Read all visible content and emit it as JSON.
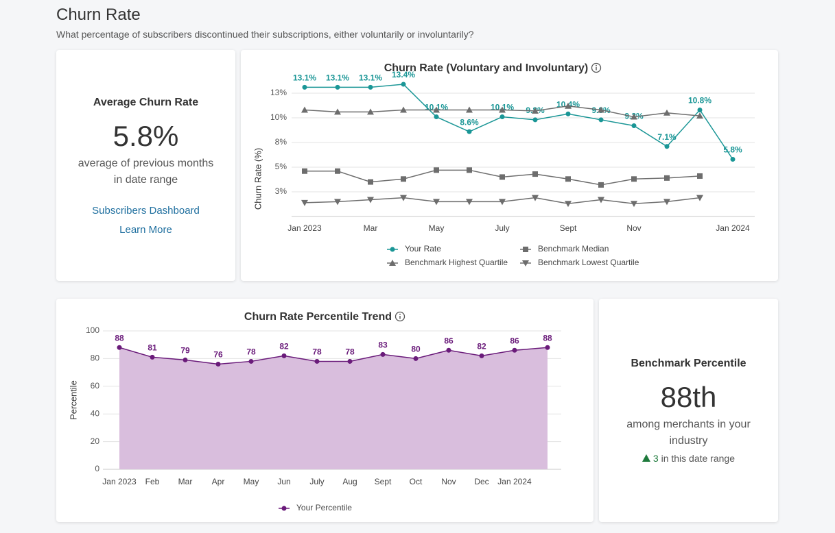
{
  "header": {
    "title": "Churn Rate",
    "subtitle": "What percentage of subscribers discontinued their subscriptions, either voluntarily or involuntarily?"
  },
  "average_card": {
    "title": "Average Churn Rate",
    "value": "5.8%",
    "caption": "average of previous months in date range",
    "links": [
      "Subscribers Dashboard",
      "Learn More"
    ]
  },
  "percentile_card": {
    "title": "Benchmark Percentile",
    "value": "88th",
    "caption": "among merchants in your industry",
    "change": 3,
    "change_text": "in this date range"
  },
  "chart_data": [
    {
      "type": "line",
      "title": "Churn Rate (Voluntary and Involuntary)",
      "y_label": "Churn Rate (%)",
      "categories": [
        "Jan 2023",
        null,
        "Mar",
        null,
        "May",
        null,
        "July",
        null,
        "Sept",
        null,
        "Nov",
        null,
        null,
        "Jan 2024"
      ],
      "ylim": [
        0,
        12.5
      ],
      "yticks": [
        {
          "value": 2.5,
          "label": "3%"
        },
        {
          "value": 5,
          "label": "5%"
        },
        {
          "value": 7.5,
          "label": "8%"
        },
        {
          "value": 10,
          "label": "10%"
        },
        {
          "value": 12.5,
          "label": "13%"
        }
      ],
      "grid": true,
      "series": [
        {
          "name": "Your Rate",
          "color": "#1a9696",
          "marker": "circle",
          "values": [
            13.1,
            13.1,
            13.1,
            13.4,
            10.1,
            8.6,
            10.1,
            9.8,
            10.4,
            9.8,
            9.2,
            7.1,
            10.8,
            5.8
          ],
          "value_labels": [
            "13.1%",
            "13.1%",
            "13.1%",
            "13.4%",
            "10.1%",
            "8.6%",
            "10.1%",
            "9.8%",
            "10.4%",
            "9.8%",
            "9.2%",
            "7.1%",
            "10.8%",
            "5.8%"
          ]
        },
        {
          "name": "Benchmark Median",
          "color": "#6d6d6d",
          "marker": "square",
          "values": [
            4.6,
            4.6,
            3.5,
            3.8,
            4.7,
            4.7,
            4.0,
            4.3,
            3.8,
            3.2,
            3.8,
            3.9,
            4.1,
            null
          ]
        },
        {
          "name": "Benchmark Highest Quartile",
          "color": "#6d6d6d",
          "marker": "triangle-up",
          "values": [
            10.8,
            10.6,
            10.6,
            10.8,
            10.8,
            10.8,
            10.8,
            10.7,
            11.2,
            10.8,
            10.1,
            10.5,
            10.2,
            null
          ]
        },
        {
          "name": "Benchmark Lowest Quartile",
          "color": "#6d6d6d",
          "marker": "triangle-down",
          "values": [
            1.4,
            1.5,
            1.7,
            1.9,
            1.5,
            1.5,
            1.5,
            1.9,
            1.3,
            1.7,
            1.3,
            1.5,
            1.9,
            null
          ]
        }
      ]
    },
    {
      "type": "area",
      "title": "Churn Rate Percentile Trend",
      "y_label": "Percentile",
      "categories": [
        "Jan 2023",
        "Feb",
        "Mar",
        "Apr",
        "May",
        "Jun",
        "July",
        "Aug",
        "Sept",
        "Oct",
        "Nov",
        "Dec",
        "Jan 2024",
        null
      ],
      "ylim": [
        0,
        100
      ],
      "yticks": [
        0,
        20,
        40,
        60,
        80,
        100
      ],
      "grid": true,
      "series": [
        {
          "name": "Your Percentile",
          "color": "#6a1b7a",
          "fill": "#d9bedd",
          "marker": "circle",
          "data_labels": true,
          "values": [
            88,
            81,
            79,
            76,
            78,
            82,
            78,
            78,
            83,
            80,
            86,
            82,
            86,
            88
          ]
        }
      ]
    }
  ]
}
